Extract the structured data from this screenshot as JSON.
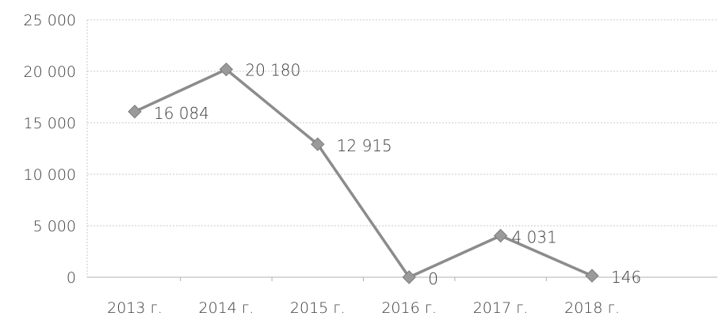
{
  "chart_data": {
    "type": "line",
    "categories": [
      "2013 г.",
      "2014 г.",
      "2015 г.",
      "2016 г.",
      "2017 г.",
      "2018 г."
    ],
    "values": [
      16084,
      20180,
      12915,
      0,
      4031,
      146
    ],
    "data_labels": [
      "16 084",
      "20 180",
      "12 915",
      "0",
      "4 031",
      "146"
    ],
    "y_ticks": [
      0,
      5000,
      10000,
      15000,
      20000,
      25000
    ],
    "y_tick_labels": [
      "0",
      "5 000",
      "10 000",
      "15 000",
      "20 000",
      "25 000"
    ],
    "ylim": [
      0,
      25000
    ],
    "grid": true,
    "legend": "none",
    "marker": "diamond",
    "colors": {
      "line": "#8c8c8c",
      "marker": "#9a9a9a",
      "grid": "#c9c9c9",
      "text": "#3a3a3a"
    }
  }
}
